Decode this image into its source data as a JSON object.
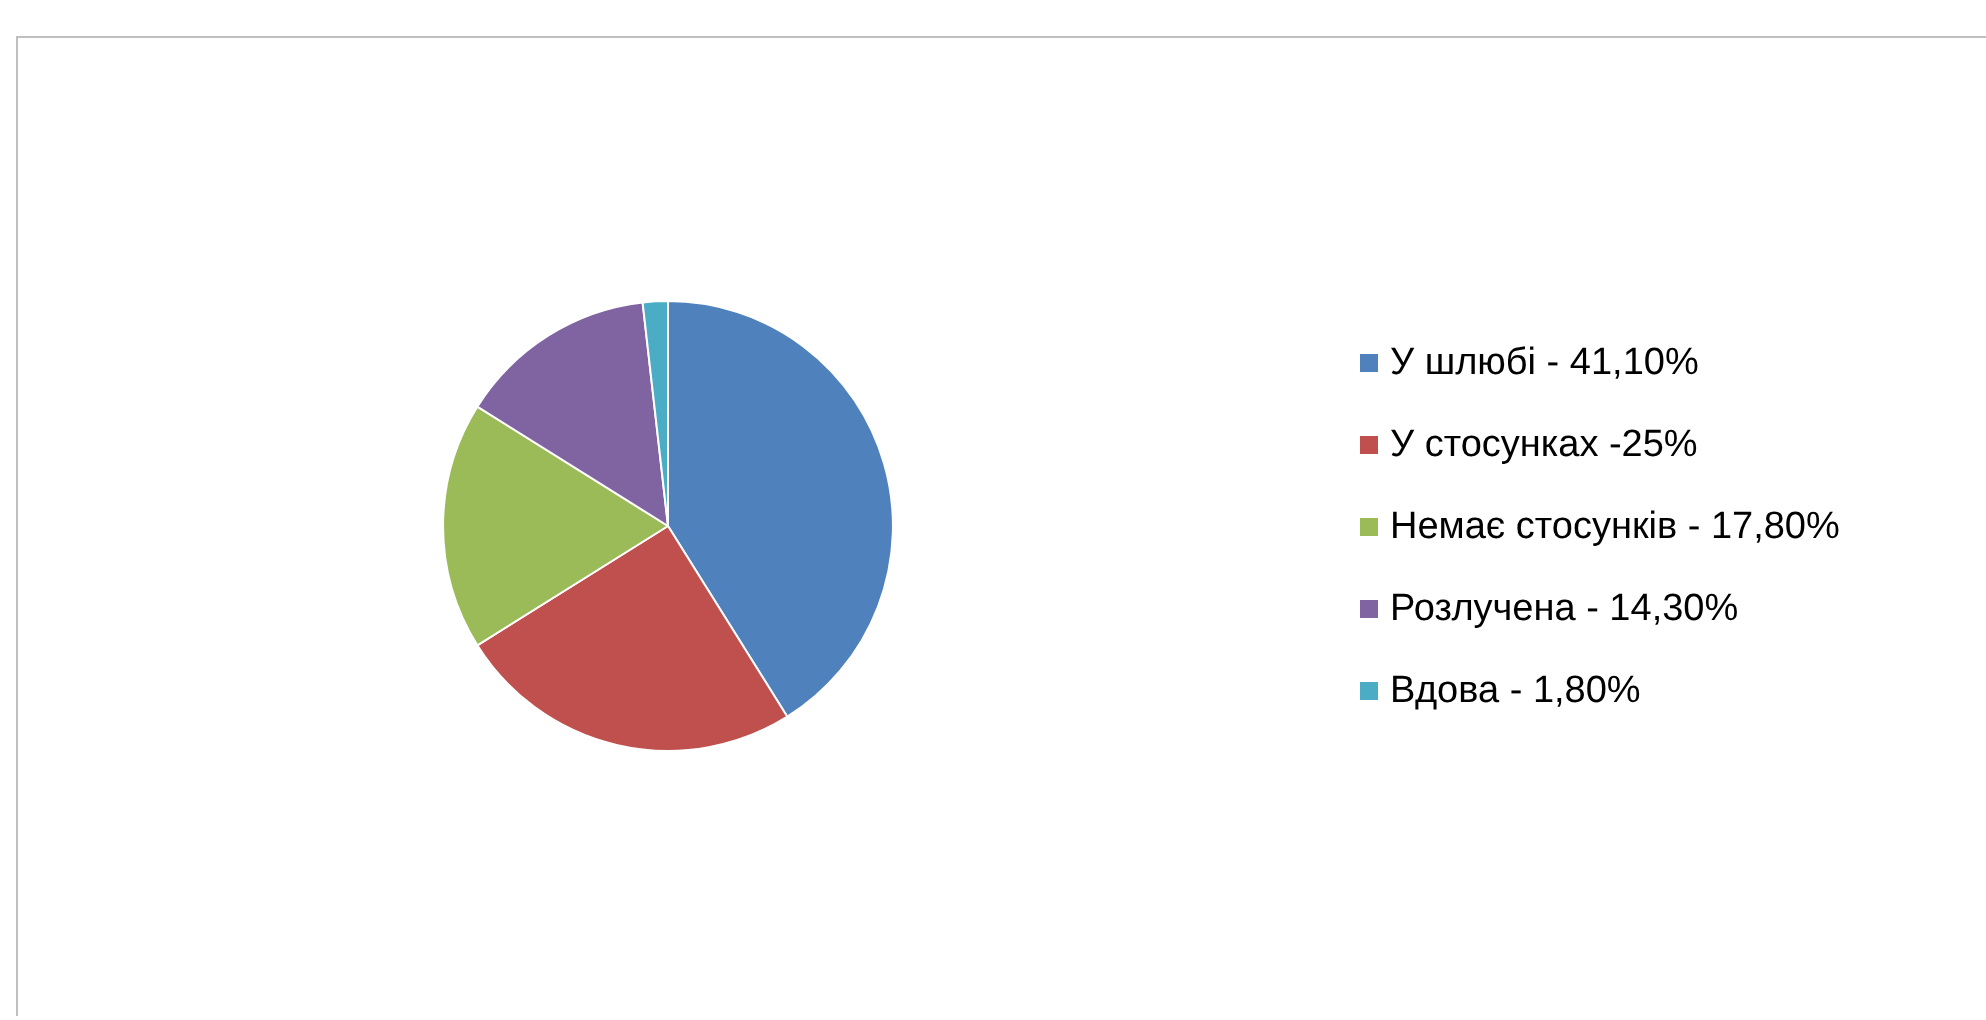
{
  "chart_data": {
    "type": "pie",
    "categories": [
      "У шлюбі - 41,10%",
      "У стосунках -25%",
      "Немає стосунків - 17,80%",
      "Розлучена - 14,30%",
      "Вдова - 1,80%"
    ],
    "values": [
      41.1,
      25,
      17.8,
      14.3,
      1.8
    ],
    "colors": [
      "#4f81bd",
      "#c0504d",
      "#9bbb59",
      "#8064a2",
      "#4bacc6"
    ],
    "legend": "right"
  }
}
